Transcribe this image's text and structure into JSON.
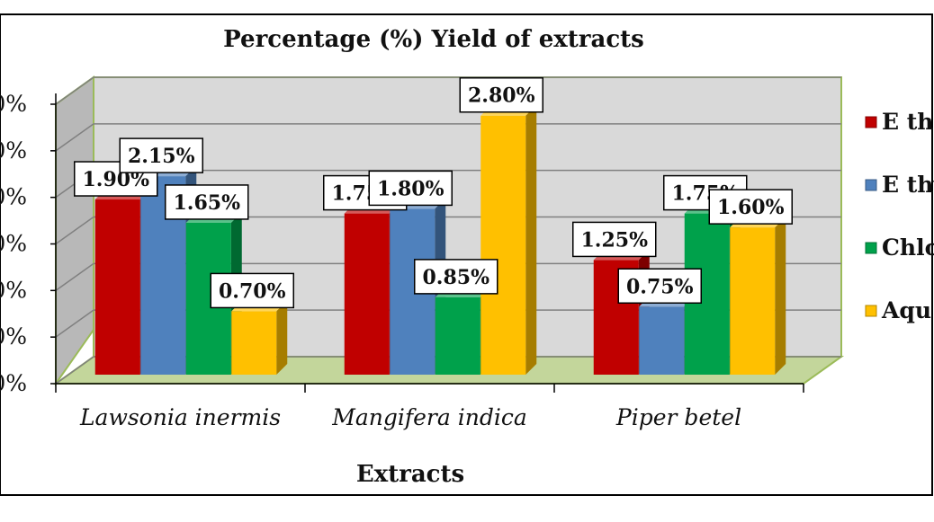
{
  "chart_data": {
    "type": "bar",
    "title": "Percentage (%) Yield of  extracts",
    "xlabel": "Extracts",
    "ylabel": "",
    "ylim": [
      0,
      3.0
    ],
    "y_tick_labels": [
      "0%",
      "0%",
      "0%",
      "0%",
      "0%",
      "0%",
      "0%"
    ],
    "categories": [
      "Lawsonia  inermis",
      "Mangifera  indica",
      "Piper betel"
    ],
    "series": [
      {
        "name": "E tha",
        "color": "#c00000",
        "values": [
          1.9,
          1.75,
          1.25
        ],
        "labels": [
          "1.90%",
          "1.75%",
          "1.25%"
        ]
      },
      {
        "name": "E thy",
        "color": "#4f81bd",
        "values": [
          2.15,
          1.8,
          0.75
        ],
        "labels": [
          "2.15%",
          "1.80%",
          "0.75%"
        ]
      },
      {
        "name": "Chlo",
        "color": "#00a14b",
        "values": [
          1.65,
          0.85,
          1.75
        ],
        "labels": [
          "1.65%",
          "0.85%",
          "1.75%"
        ]
      },
      {
        "name": "Aqu",
        "color": "#ffc000",
        "values": [
          0.7,
          2.8,
          1.6
        ],
        "labels": [
          "0.70%",
          "2.80%",
          "1.60%"
        ]
      }
    ],
    "grid": true,
    "legend_position": "right",
    "style": "3d-clustered-column"
  }
}
